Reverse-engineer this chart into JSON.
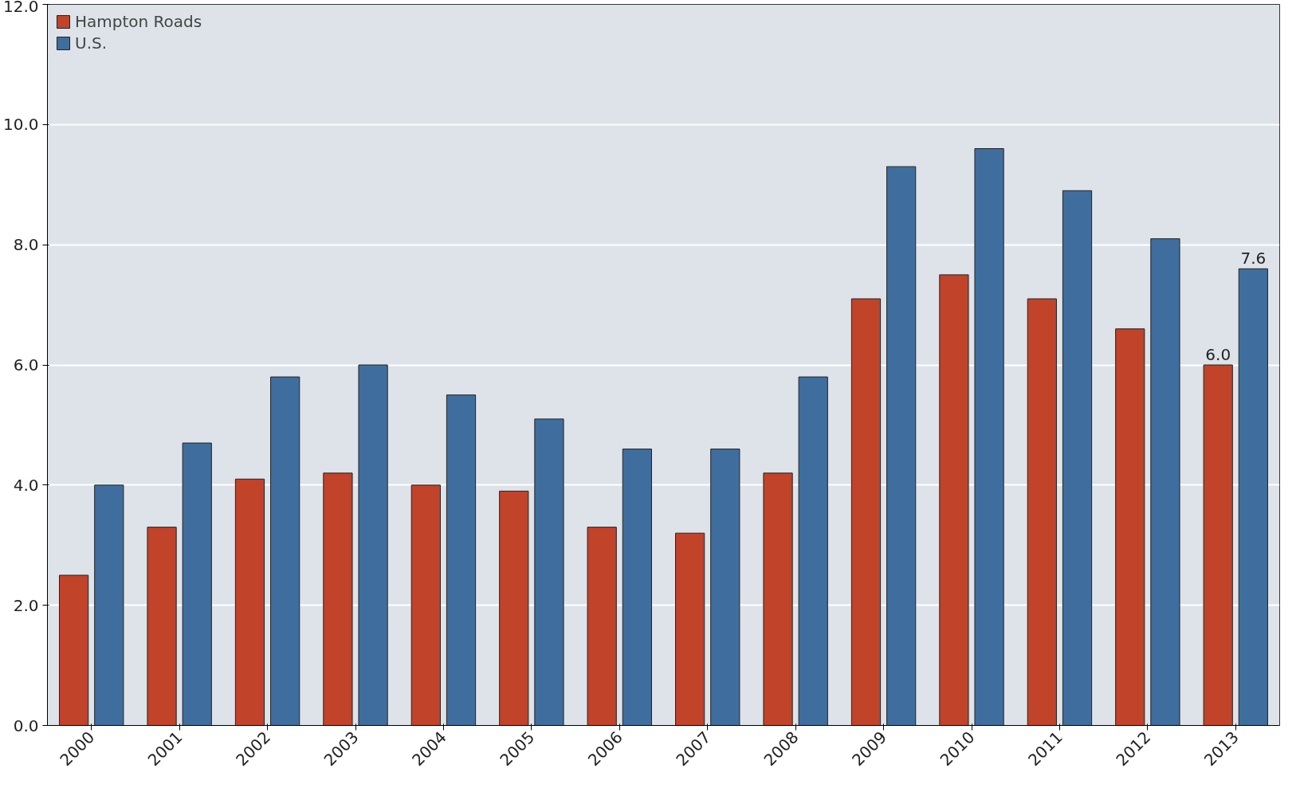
{
  "chart_data": {
    "type": "bar",
    "categories": [
      "2000",
      "2001",
      "2002",
      "2003",
      "2004",
      "2005",
      "2006",
      "2007",
      "2008",
      "2009",
      "2010",
      "2011",
      "2012",
      "2013"
    ],
    "series": [
      {
        "name": "Hampton Roads",
        "color": "#c0432a",
        "values": [
          2.5,
          3.3,
          4.1,
          4.2,
          4.0,
          3.9,
          3.3,
          3.2,
          4.2,
          7.1,
          7.5,
          7.1,
          6.6,
          6.0
        ],
        "value_labels": [
          null,
          null,
          null,
          null,
          null,
          null,
          null,
          null,
          null,
          null,
          null,
          null,
          null,
          "6.0"
        ]
      },
      {
        "name": "U.S.",
        "color": "#3f6e9e",
        "values": [
          4.0,
          4.7,
          5.8,
          6.0,
          5.5,
          5.1,
          4.6,
          4.6,
          5.8,
          9.3,
          9.6,
          8.9,
          8.1,
          7.6
        ],
        "value_labels": [
          null,
          null,
          null,
          null,
          null,
          null,
          null,
          null,
          null,
          null,
          null,
          null,
          null,
          "7.6"
        ]
      }
    ],
    "ylim": [
      0,
      12
    ],
    "yticks": [
      {
        "value": 0,
        "label": "0.0"
      },
      {
        "value": 2,
        "label": "2.0"
      },
      {
        "value": 4,
        "label": "4.0"
      },
      {
        "value": 6,
        "label": "6.0"
      },
      {
        "value": 8,
        "label": "8.0"
      },
      {
        "value": 10,
        "label": "10.0"
      },
      {
        "value": 12,
        "label": "12.0"
      }
    ],
    "grid": "y",
    "legend": "top left"
  }
}
